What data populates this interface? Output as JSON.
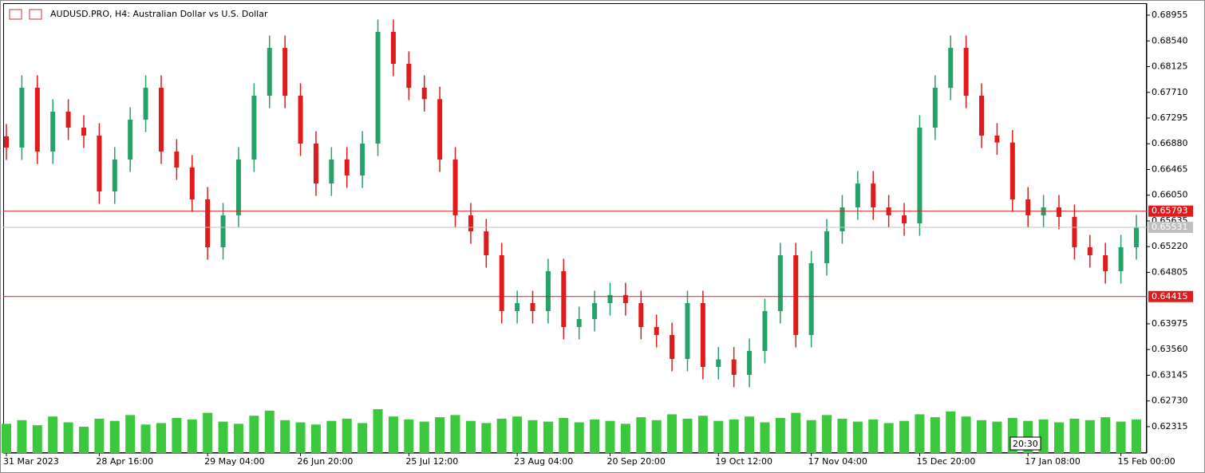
{
  "chart_data": {
    "type": "candlestick",
    "title": "AUDUSD.PRO, H4:  Australian Dollar vs U.S. Dollar",
    "bull_color": "#26a269",
    "bear_color": "#e01b1b",
    "volume_color": "#3cc83c",
    "ylim": [
      0.61889,
      0.692
    ],
    "yticks": [
      0.68955,
      {
        "value": 0.6854,
        "label": "0.68540"
      },
      0.68125,
      {
        "value": 0.6771,
        "label": "0.67710"
      },
      0.67295,
      {
        "value": 0.6688,
        "label": "0.66880"
      },
      0.66465,
      {
        "value": 0.6605,
        "label": "0.66050"
      },
      0.65635,
      {
        "value": 0.6522,
        "label": "0.65220"
      },
      0.64805,
      0.63975,
      {
        "value": 0.6356,
        "label": "0.63560"
      },
      0.63145,
      {
        "value": 0.6273,
        "label": "0.62730"
      },
      0.62315
    ],
    "levels": [
      {
        "value": 0.65793,
        "color": "#e01b1b"
      },
      {
        "value": 0.64415,
        "color": "#e01b1b"
      }
    ],
    "current_price": {
      "value": 0.65531,
      "color": "#c0c0c0"
    },
    "time_marker": "20:30",
    "categories": [
      "31 Mar 2023",
      null,
      null,
      null,
      null,
      null,
      "28 Apr 16:00",
      null,
      null,
      null,
      null,
      null,
      null,
      "29 May 04:00",
      null,
      null,
      null,
      null,
      null,
      "26 Jun 20:00",
      null,
      null,
      null,
      null,
      null,
      null,
      "25 Jul 12:00",
      null,
      null,
      null,
      null,
      null,
      null,
      "23 Aug 04:00",
      null,
      null,
      null,
      null,
      null,
      "20 Sep 20:00",
      null,
      null,
      null,
      null,
      null,
      null,
      "19 Oct 12:00",
      null,
      null,
      null,
      null,
      null,
      "17 Nov 04:00",
      null,
      null,
      null,
      null,
      null,
      null,
      "15 Dec 20:00",
      null,
      null,
      null,
      null,
      null,
      null,
      "17 Jan 08:00",
      null,
      null,
      null,
      null,
      null,
      "15 Feb 00:00",
      null
    ],
    "ohlc": [
      [
        0.67,
        0.672,
        0.66619,
        0.66819
      ],
      [
        0.66819,
        0.67984,
        0.66619,
        0.67784
      ],
      [
        0.67784,
        0.67984,
        0.66554,
        0.66754
      ],
      [
        0.66754,
        0.67598,
        0.66554,
        0.67398
      ],
      [
        0.67398,
        0.67598,
        0.6694,
        0.6714
      ],
      [
        0.6714,
        0.6734,
        0.66812,
        0.67012
      ],
      [
        0.67012,
        0.67212,
        0.65911,
        0.66111
      ],
      [
        0.66111,
        0.66826,
        0.65911,
        0.66626
      ],
      [
        0.66626,
        0.67469,
        0.66426,
        0.67269
      ],
      [
        0.67269,
        0.67984,
        0.67069,
        0.67784
      ],
      [
        0.67784,
        0.67984,
        0.66554,
        0.66754
      ],
      [
        0.66754,
        0.66954,
        0.66297,
        0.66497
      ],
      [
        0.66497,
        0.66697,
        0.65782,
        0.65982
      ],
      [
        0.65982,
        0.66182,
        0.6501,
        0.6521
      ],
      [
        0.6521,
        0.65925,
        0.6501,
        0.65725
      ],
      [
        0.65725,
        0.66826,
        0.65525,
        0.66626
      ],
      [
        0.66626,
        0.67855,
        0.66426,
        0.67655
      ],
      [
        0.67655,
        0.68627,
        0.67455,
        0.68427
      ],
      [
        0.68427,
        0.68627,
        0.67455,
        0.67655
      ],
      [
        0.67655,
        0.67855,
        0.66683,
        0.66883
      ],
      [
        0.66883,
        0.67083,
        0.66039,
        0.66239
      ],
      [
        0.66239,
        0.66826,
        0.66039,
        0.66626
      ],
      [
        0.66626,
        0.66826,
        0.66168,
        0.66368
      ],
      [
        0.66368,
        0.67083,
        0.66168,
        0.66883
      ],
      [
        0.66883,
        0.68885,
        0.66683,
        0.68685
      ],
      [
        0.68685,
        0.68885,
        0.6797,
        0.6817
      ],
      [
        0.6817,
        0.6837,
        0.67584,
        0.67784
      ],
      [
        0.67784,
        0.67984,
        0.674,
        0.676
      ],
      [
        0.676,
        0.678,
        0.66426,
        0.66626
      ],
      [
        0.66626,
        0.66826,
        0.65525,
        0.65725
      ],
      [
        0.65725,
        0.65925,
        0.65267,
        0.65467
      ],
      [
        0.65467,
        0.65667,
        0.64881,
        0.65081
      ],
      [
        0.65081,
        0.65281,
        0.6398,
        0.6418
      ],
      [
        0.6418,
        0.64509,
        0.6398,
        0.64309
      ],
      [
        0.64309,
        0.64509,
        0.6398,
        0.6418
      ],
      [
        0.6418,
        0.65024,
        0.6398,
        0.64824
      ],
      [
        0.64824,
        0.65024,
        0.63723,
        0.63923
      ],
      [
        0.63923,
        0.64252,
        0.63723,
        0.64052
      ],
      [
        0.64052,
        0.64509,
        0.63852,
        0.64309
      ],
      [
        0.64309,
        0.64638,
        0.64109,
        0.64438
      ],
      [
        0.64438,
        0.64638,
        0.64109,
        0.64309
      ],
      [
        0.64309,
        0.64509,
        0.63723,
        0.63923
      ],
      [
        0.63923,
        0.64123,
        0.63594,
        0.63794
      ],
      [
        0.63794,
        0.63994,
        0.63208,
        0.63408
      ],
      [
        0.63408,
        0.64509,
        0.63208,
        0.64309
      ],
      [
        0.64309,
        0.64509,
        0.63079,
        0.63279
      ],
      [
        0.63279,
        0.636,
        0.63079,
        0.634
      ],
      [
        0.634,
        0.636,
        0.62951,
        0.63151
      ],
      [
        0.63151,
        0.63737,
        0.62951,
        0.63537
      ],
      [
        0.63537,
        0.6438,
        0.63337,
        0.6418
      ],
      [
        0.6418,
        0.65281,
        0.6398,
        0.65081
      ],
      [
        0.65081,
        0.65281,
        0.63594,
        0.63794
      ],
      [
        0.63794,
        0.65152,
        0.63594,
        0.64952
      ],
      [
        0.64952,
        0.65667,
        0.64752,
        0.65467
      ],
      [
        0.65467,
        0.66053,
        0.65267,
        0.65853
      ],
      [
        0.65853,
        0.66439,
        0.65653,
        0.66239
      ],
      [
        0.66239,
        0.66439,
        0.65653,
        0.65853
      ],
      [
        0.65853,
        0.66053,
        0.65525,
        0.65725
      ],
      [
        0.65725,
        0.65925,
        0.65396,
        0.65596
      ],
      [
        0.65596,
        0.6734,
        0.65396,
        0.6714
      ],
      [
        0.6714,
        0.67984,
        0.6694,
        0.67784
      ],
      [
        0.67784,
        0.68627,
        0.67584,
        0.68427
      ],
      [
        0.68427,
        0.68627,
        0.67455,
        0.67655
      ],
      [
        0.67655,
        0.67855,
        0.66812,
        0.67012
      ],
      [
        0.67012,
        0.67212,
        0.667,
        0.669
      ],
      [
        0.669,
        0.671,
        0.65782,
        0.65982
      ],
      [
        0.65982,
        0.66182,
        0.65525,
        0.65725
      ],
      [
        0.65725,
        0.66053,
        0.65525,
        0.65853
      ],
      [
        0.65853,
        0.66053,
        0.655,
        0.657
      ],
      [
        0.657,
        0.659,
        0.6501,
        0.6521
      ],
      [
        0.6521,
        0.6541,
        0.64881,
        0.65081
      ],
      [
        0.65081,
        0.65281,
        0.64624,
        0.64824
      ],
      [
        0.64824,
        0.6541,
        0.64624,
        0.6521
      ],
      [
        0.6521,
        0.65731,
        0.6501,
        0.65531
      ]
    ],
    "volumes": [
      40,
      45,
      38,
      50,
      42,
      36,
      47,
      44,
      52,
      39,
      41,
      48,
      46,
      55,
      43,
      40,
      51,
      58,
      45,
      42,
      39,
      44,
      47,
      41,
      60,
      50,
      46,
      43,
      49,
      52,
      44,
      41,
      47,
      50,
      45,
      43,
      48,
      42,
      46,
      44,
      40,
      49,
      45,
      53,
      47,
      51,
      44,
      46,
      50,
      42,
      48,
      55,
      45,
      52,
      47,
      43,
      46,
      41,
      44,
      53,
      49,
      57,
      50,
      45,
      43,
      48,
      44,
      46,
      42,
      47,
      45,
      49,
      43,
      46
    ]
  }
}
